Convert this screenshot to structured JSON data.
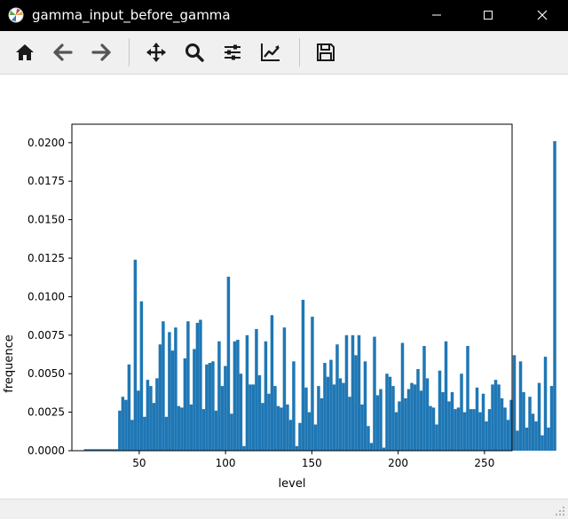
{
  "window": {
    "title": "gamma_input_before_gamma",
    "icons": [
      "matplotlib-icon",
      "minimize-icon",
      "maximize-icon",
      "close-icon"
    ]
  },
  "toolbar": {
    "buttons": [
      "home-icon",
      "back-arrow-icon",
      "forward-arrow-icon",
      "pan-icon",
      "zoom-icon",
      "configure-subplots-icon",
      "edit-axes-icon",
      "save-icon"
    ]
  },
  "colors": {
    "bar": "#1f77b4",
    "titlebar": "#000000",
    "toolbar": "#f0f0f0"
  },
  "chart_data": {
    "type": "bar",
    "title": "",
    "xlabel": "level",
    "ylabel": "frequence",
    "xlim": [
      11,
      266
    ],
    "ylim": [
      0,
      0.0212
    ],
    "xticks": [
      50,
      100,
      150,
      200,
      250
    ],
    "xtick_labels": [
      "50",
      "100",
      "150",
      "200",
      "250"
    ],
    "yticks": [
      0.0,
      0.0025,
      0.005,
      0.0075,
      0.01,
      0.0125,
      0.015,
      0.0175,
      0.02
    ],
    "ytick_labels": [
      "0.0000",
      "0.0025",
      "0.0050",
      "0.0075",
      "0.0100",
      "0.0125",
      "0.0150",
      "0.0175",
      "0.0200"
    ],
    "grid": false,
    "bin_start": 18,
    "bin_width": 1.8,
    "values": [
      0.0001,
      0.0001,
      0.0001,
      0.0001,
      0.0001,
      0.0001,
      0.0001,
      0.0001,
      0.0001,
      0.0001,
      0.0001,
      0.0026,
      0.0035,
      0.0033,
      0.0056,
      0.002,
      0.0124,
      0.0039,
      0.0097,
      0.0022,
      0.0046,
      0.0042,
      0.0031,
      0.0047,
      0.0069,
      0.0084,
      0.0022,
      0.0077,
      0.0065,
      0.008,
      0.0029,
      0.0028,
      0.006,
      0.0084,
      0.003,
      0.0066,
      0.0083,
      0.0085,
      0.0027,
      0.0056,
      0.0057,
      0.0058,
      0.0026,
      0.0071,
      0.0042,
      0.0055,
      0.0113,
      0.0024,
      0.0071,
      0.0072,
      0.005,
      0.0003,
      0.0075,
      0.0043,
      0.0043,
      0.0079,
      0.0049,
      0.0031,
      0.0071,
      0.0037,
      0.0088,
      0.0042,
      0.0029,
      0.0028,
      0.008,
      0.003,
      0.002,
      0.0058,
      0.0003,
      0.0018,
      0.0098,
      0.0041,
      0.0025,
      0.0087,
      0.0017,
      0.0042,
      0.0034,
      0.0057,
      0.0048,
      0.0059,
      0.0043,
      0.0069,
      0.0047,
      0.0044,
      0.0075,
      0.0035,
      0.0075,
      0.0062,
      0.0075,
      0.003,
      0.0058,
      0.0016,
      0.0005,
      0.0074,
      0.0036,
      0.004,
      0.0002,
      0.005,
      0.0048,
      0.0042,
      0.0025,
      0.0032,
      0.007,
      0.0034,
      0.004,
      0.0044,
      0.0043,
      0.0053,
      0.0039,
      0.0068,
      0.0047,
      0.0029,
      0.0028,
      0.0017,
      0.0052,
      0.0038,
      0.0071,
      0.0032,
      0.0038,
      0.0027,
      0.0028,
      0.005,
      0.0025,
      0.0068,
      0.0027,
      0.0027,
      0.0041,
      0.0025,
      0.0037,
      0.0019,
      0.0027,
      0.0043,
      0.0046,
      0.0043,
      0.0034,
      0.0028,
      0.002,
      0.0033,
      0.0062,
      0.0013,
      0.0058,
      0.0038,
      0.0015,
      0.0035,
      0.0024,
      0.0019,
      0.0044,
      0.001,
      0.0061,
      0.0015,
      0.0042,
      0.0201
    ]
  }
}
